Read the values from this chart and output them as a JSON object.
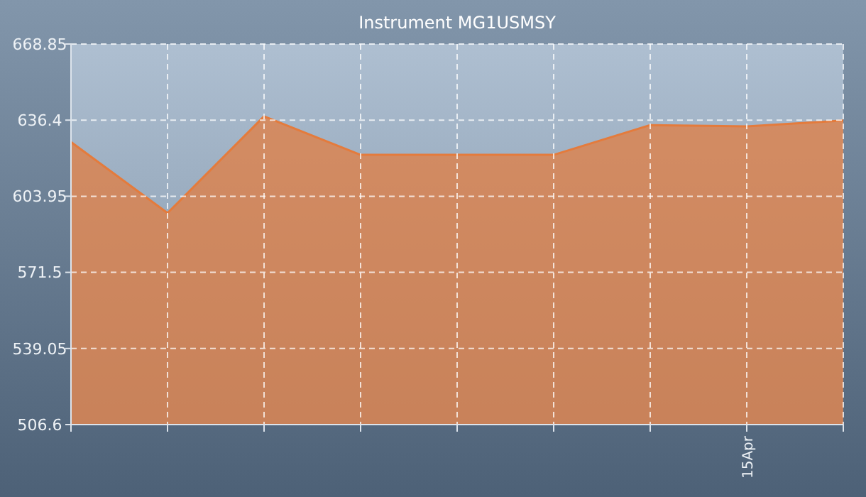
{
  "chart_data": {
    "type": "area",
    "title": "Instrument MG1USMSY",
    "categories": [
      null,
      null,
      null,
      null,
      null,
      null,
      null,
      "15Apr",
      null
    ],
    "series": [
      {
        "color": "#e47b3c",
        "values": [
          627.1,
          596.8,
          638.0,
          621.6,
          621.6,
          621.6,
          634.3,
          633.7,
          636.2
        ]
      }
    ],
    "ylim": [
      506.6,
      668.85
    ],
    "yticks": [
      506.6,
      539.05,
      571.5,
      603.95,
      636.4,
      668.85
    ],
    "grid": true
  }
}
